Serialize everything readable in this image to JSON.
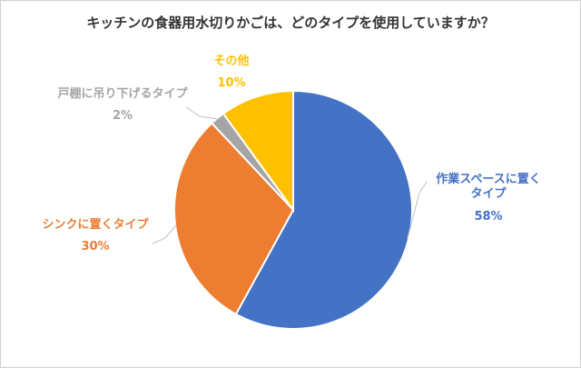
{
  "chart_data": {
    "type": "pie",
    "title": "キッチンの食器用水切りかごは、どのタイプを使用していますか？",
    "slices": [
      {
        "label": "作業スペースに置くタイプ",
        "label_lines": [
          "作業スペースに置く",
          "タイプ"
        ],
        "value": 58,
        "value_label": "58%",
        "color": "#4472C4"
      },
      {
        "label": "シンクに置くタイプ",
        "label_lines": [
          "シンクに置くタイプ"
        ],
        "value": 30,
        "value_label": "30%",
        "color": "#ED7D31"
      },
      {
        "label": "戸棚に吊り下げるタイプ",
        "label_lines": [
          "戸棚に吊り下げるタイプ"
        ],
        "value": 2,
        "value_label": "2%",
        "color": "#A5A5A5"
      },
      {
        "label": "その他",
        "label_lines": [
          "その他"
        ],
        "value": 10,
        "value_label": "10%",
        "color": "#FFC000"
      }
    ],
    "start": "12 o'clock",
    "direction": "clockwise",
    "leader_lines": true
  }
}
